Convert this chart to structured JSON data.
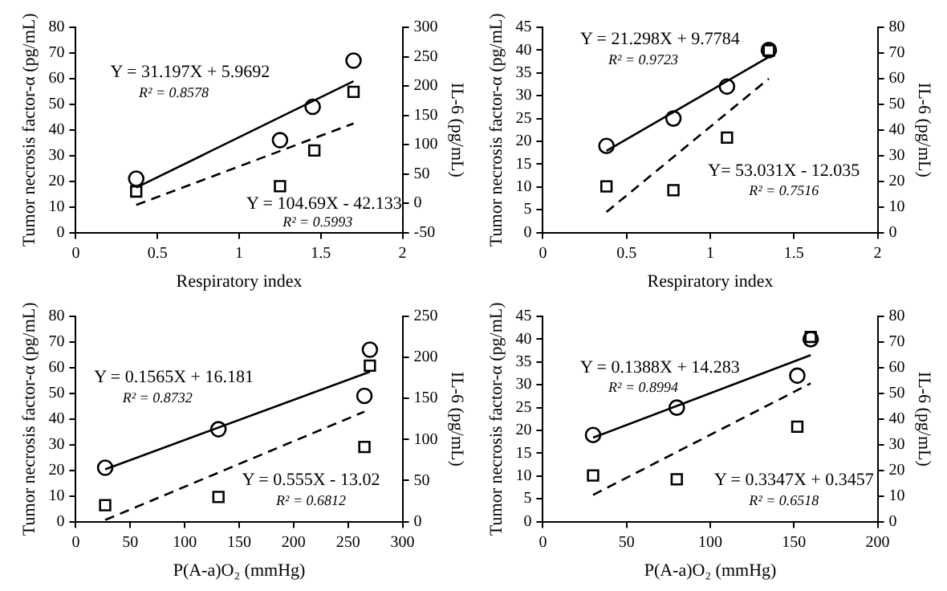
{
  "chart_data": [
    {
      "type": "scatter",
      "xlabel": "Respiratory index",
      "ylabel": "Tumor necrosis factor-α (pg/mL)",
      "y2label": "IL-6 (pg/mL)",
      "xlim": [
        0,
        2
      ],
      "xticks": [
        0,
        0.5,
        1,
        1.5,
        2
      ],
      "ylim": [
        0,
        80
      ],
      "yticks": [
        0,
        10,
        20,
        30,
        40,
        50,
        60,
        70,
        80
      ],
      "y2lim": [
        -50,
        300
      ],
      "y2ticks": [
        -50,
        0,
        50,
        100,
        150,
        200,
        250,
        300
      ],
      "grid": false,
      "legend": false,
      "series": [
        {
          "type": "scatter",
          "marker": "circle",
          "color": "#000000",
          "x": [
            0.37,
            1.25,
            1.45,
            1.7
          ],
          "values": [
            21,
            36,
            49,
            67
          ]
        },
        {
          "type": "scatter",
          "marker": "square",
          "axis": "y2",
          "color": "#000000",
          "x": [
            0.37,
            1.25,
            1.46,
            1.7
          ],
          "values": [
            20,
            29,
            90,
            190
          ]
        },
        {
          "type": "line",
          "line_style": "solid",
          "color": "#000000",
          "x": [
            0.37,
            1.7
          ],
          "values": [
            17.5,
            59
          ]
        },
        {
          "type": "line",
          "line_style": "dashed",
          "axis": "y2",
          "color": "#000000",
          "x": [
            0.37,
            1.7
          ],
          "values": [
            -3,
            136
          ]
        }
      ],
      "annotations": [
        "Y = 31.197X + 5.9692",
        "R² = 0.8578",
        "Y = 104.69X - 42.133",
        "R² = 0.5993"
      ]
    },
    {
      "type": "scatter",
      "xlabel": "Respiratory index",
      "ylabel": "Tumor necrosis factor-α (pg/mL)",
      "y2label": "IL-6 (pg/mL)",
      "xlim": [
        0,
        2
      ],
      "xticks": [
        0,
        0.5,
        1,
        1.5,
        2
      ],
      "ylim": [
        0,
        45
      ],
      "yticks": [
        0,
        5,
        10,
        15,
        20,
        25,
        30,
        35,
        40,
        45
      ],
      "y2lim": [
        0,
        80
      ],
      "y2ticks": [
        0,
        10,
        20,
        30,
        40,
        50,
        60,
        70,
        80
      ],
      "grid": false,
      "legend": false,
      "series": [
        {
          "type": "scatter",
          "marker": "circle",
          "color": "#000000",
          "x": [
            0.38,
            0.78,
            1.1,
            1.35
          ],
          "values": [
            19,
            25,
            32,
            40
          ]
        },
        {
          "type": "scatter",
          "marker": "square",
          "axis": "y2",
          "color": "#000000",
          "x": [
            0.38,
            0.78,
            1.1,
            1.35
          ],
          "values": [
            18,
            16.5,
            37,
            71
          ]
        },
        {
          "type": "line",
          "line_style": "solid",
          "color": "#000000",
          "x": [
            0.38,
            1.35
          ],
          "values": [
            17.9,
            38.5
          ]
        },
        {
          "type": "line",
          "line_style": "dashed",
          "axis": "y2",
          "color": "#000000",
          "x": [
            0.38,
            1.35
          ],
          "values": [
            8,
            60
          ]
        }
      ],
      "annotations": [
        "Y = 21.298X + 9.7784",
        "R² = 0.9723",
        "Y= 53.031X - 12.035",
        "R² = 0.7516"
      ]
    },
    {
      "type": "scatter",
      "xlabel": "P(A-a)O₂ (mmHg)",
      "ylabel": "Tumor necrosis factor-α (pg/mL)",
      "y2label": "IL-6 (pg/mL)",
      "xlim": [
        0,
        300
      ],
      "xticks": [
        0,
        50,
        100,
        150,
        200,
        250,
        300
      ],
      "ylim": [
        0,
        80
      ],
      "yticks": [
        0,
        10,
        20,
        30,
        40,
        50,
        60,
        70,
        80
      ],
      "y2lim": [
        0,
        250
      ],
      "y2ticks": [
        0,
        50,
        100,
        150,
        200,
        250
      ],
      "grid": false,
      "legend": false,
      "series": [
        {
          "type": "scatter",
          "marker": "circle",
          "color": "#000000",
          "x": [
            27,
            131,
            265,
            270
          ],
          "values": [
            21,
            36,
            49,
            67
          ]
        },
        {
          "type": "scatter",
          "marker": "square",
          "axis": "y2",
          "color": "#000000",
          "x": [
            27,
            131,
            265,
            270
          ],
          "values": [
            20,
            30,
            91,
            190
          ]
        },
        {
          "type": "line",
          "line_style": "solid",
          "color": "#000000",
          "x": [
            27,
            270
          ],
          "values": [
            20.4,
            58.4
          ]
        },
        {
          "type": "line",
          "line_style": "dashed",
          "axis": "y2",
          "color": "#000000",
          "x": [
            27,
            265
          ],
          "values": [
            2,
            134
          ]
        }
      ],
      "annotations": [
        "Y = 0.1565X + 16.181",
        "R² = 0.8732",
        "Y = 0.555X - 13.02",
        "R² = 0.6812"
      ]
    },
    {
      "type": "scatter",
      "xlabel": "P(A-a)O₂ (mmHg)",
      "ylabel": "Tumor necrosis factor-α (pg/mL)",
      "y2label": "IL-6 (pg/mL)",
      "xlim": [
        0,
        200
      ],
      "xticks": [
        0,
        50,
        100,
        150,
        200
      ],
      "ylim": [
        0,
        45
      ],
      "yticks": [
        0,
        5,
        10,
        15,
        20,
        25,
        30,
        35,
        40,
        45
      ],
      "y2lim": [
        0,
        80
      ],
      "y2ticks": [
        0,
        10,
        20,
        30,
        40,
        50,
        60,
        70,
        80
      ],
      "grid": false,
      "legend": false,
      "series": [
        {
          "type": "scatter",
          "marker": "circle",
          "color": "#000000",
          "x": [
            30,
            80,
            152,
            160
          ],
          "values": [
            19,
            25,
            32,
            40
          ]
        },
        {
          "type": "scatter",
          "marker": "square",
          "axis": "y2",
          "color": "#000000",
          "x": [
            30,
            80,
            152,
            160
          ],
          "values": [
            18,
            16.5,
            37,
            72
          ]
        },
        {
          "type": "line",
          "line_style": "solid",
          "color": "#000000",
          "x": [
            30,
            160
          ],
          "values": [
            18.4,
            36.5
          ]
        },
        {
          "type": "line",
          "line_style": "dashed",
          "axis": "y2",
          "color": "#000000",
          "x": [
            30,
            160
          ],
          "values": [
            10.4,
            53.9
          ]
        }
      ],
      "annotations": [
        "Y = 0.1388X + 14.283",
        "R² = 0.8994",
        "Y = 0.3347X + 0.3457",
        "R² = 0.6518"
      ]
    }
  ]
}
